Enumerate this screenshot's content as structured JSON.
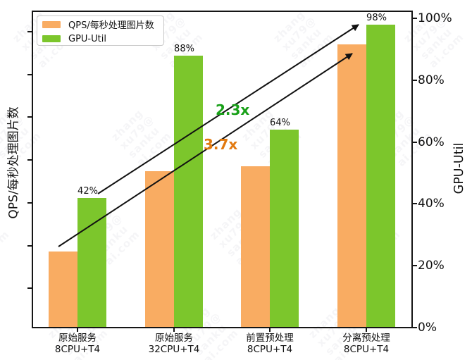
{
  "watermark": {
    "text_lines": [
      "zhang",
      "xu79@",
      "sanku",
      "ai.com"
    ]
  },
  "legend": {
    "items": [
      {
        "label": "QPS/每秒处理图片数",
        "color": "#F9AC62"
      },
      {
        "label": "GPU-Util",
        "color": "#7CC62C"
      }
    ]
  },
  "chart_data": {
    "type": "bar",
    "title": "",
    "categories": [
      {
        "line1": "原始服务",
        "line2": "8CPU+T4"
      },
      {
        "line1": "原始服务",
        "line2": "32CPU+T4"
      },
      {
        "line1": "前置预处理",
        "line2": "8CPU+T4"
      },
      {
        "line1": "分离预处理",
        "line2": "8CPU+T4"
      }
    ],
    "series": [
      {
        "name": "QPS/每秒处理图片数",
        "axis": "left",
        "color": "#F9AC62",
        "values": [
          24.5,
          50.6,
          52.2,
          91.6
        ],
        "labels": [
          null,
          null,
          null,
          null
        ]
      },
      {
        "name": "GPU-Util",
        "axis": "right",
        "color": "#7CC62C",
        "values": [
          42,
          88,
          64,
          98
        ],
        "labels": [
          "42%",
          "88%",
          "64%",
          "98%"
        ]
      }
    ],
    "left_axis": {
      "label": "QPS/每秒处理图片数",
      "ticks_labeled": false,
      "unlabeled_tick_count": 7
    },
    "right_axis": {
      "label": "GPU-Util",
      "ticks": [
        0,
        20,
        40,
        60,
        80,
        100
      ],
      "tick_suffix": "%",
      "range": [
        0,
        102
      ]
    },
    "annotations": [
      {
        "text": "2.3x",
        "color": "#18A018"
      },
      {
        "text": "3.7x",
        "color": "#E2790F"
      }
    ],
    "grid": false,
    "legend_position": "upper-left"
  }
}
